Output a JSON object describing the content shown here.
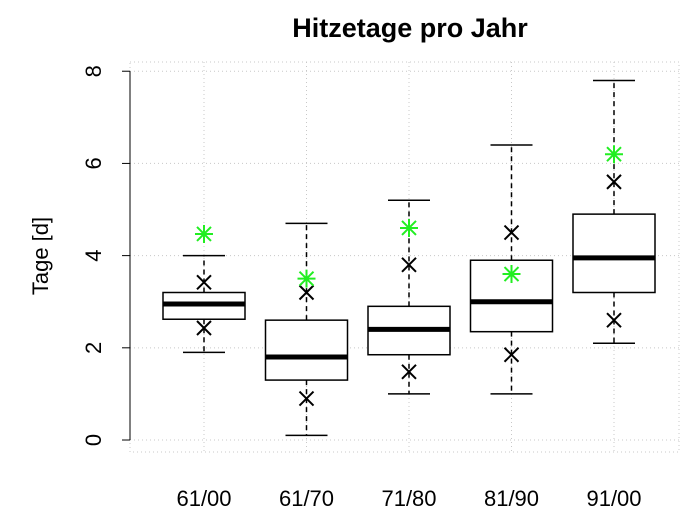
{
  "chart_data": {
    "type": "box",
    "title": "Hitzetage pro Jahr",
    "y_label": "Tage [d]",
    "categories": [
      "61/00",
      "61/70",
      "71/80",
      "81/90",
      "91/00"
    ],
    "whisker_low": [
      1.9,
      0.1,
      1.0,
      1.0,
      2.1
    ],
    "q1": [
      2.62,
      1.3,
      1.85,
      2.35,
      3.2
    ],
    "median": [
      2.95,
      1.8,
      2.4,
      3.0,
      3.95
    ],
    "q3": [
      3.2,
      2.6,
      2.9,
      3.9,
      4.9
    ],
    "whisker_high": [
      4.0,
      4.7,
      5.2,
      6.4,
      7.8
    ],
    "markers": [
      {
        "marker": "x",
        "color": "#000000",
        "values": [
          3.42,
          3.2,
          3.8,
          4.5,
          5.6
        ]
      },
      {
        "marker": "x",
        "color": "#000000",
        "values": [
          2.43,
          0.9,
          1.48,
          1.85,
          2.6
        ]
      },
      {
        "marker": "asterisk",
        "color": "#22ee22",
        "values": [
          4.47,
          3.5,
          4.6,
          3.6,
          6.2
        ]
      }
    ],
    "ylim": [
      -0.26,
      8.2
    ],
    "yticks": [
      0,
      2,
      4,
      6,
      8
    ],
    "grid": true
  }
}
